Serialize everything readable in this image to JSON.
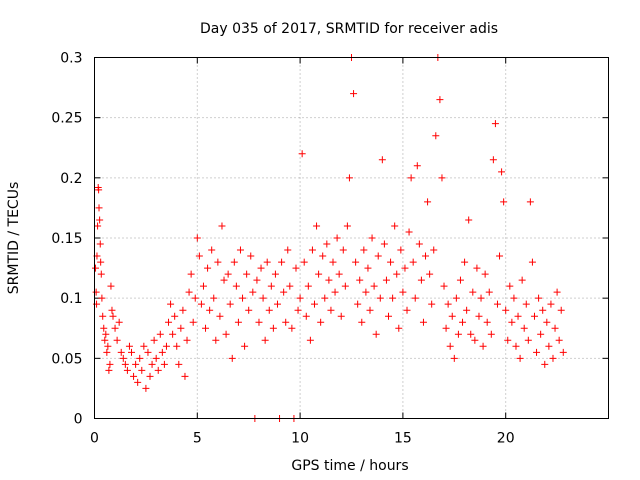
{
  "chart_data": {
    "type": "scatter",
    "title": "Day 035 of 2017, SRMTID for receiver adis",
    "xlabel": "GPS time / hours",
    "ylabel": "SRMTID / TECUs",
    "xlim": [
      0,
      25
    ],
    "ylim": [
      0,
      0.3
    ],
    "xticks": [
      0,
      5,
      10,
      15,
      20
    ],
    "xtick_labels": [
      "0",
      "5",
      "10",
      "15",
      "20"
    ],
    "yticks": [
      0,
      0.05,
      0.1,
      0.15,
      0.2,
      0.25,
      0.3
    ],
    "ytick_labels": [
      "0",
      "0.05",
      "0.1",
      "0.15",
      "0.2",
      "0.25",
      "0.3"
    ],
    "grid": true,
    "marker": "+",
    "color": "#ff0000",
    "series": [
      {
        "name": "SRMTID",
        "points": [
          [
            0.05,
            0.125
          ],
          [
            0.08,
            0.105
          ],
          [
            0.1,
            0.095
          ],
          [
            0.12,
            0.135
          ],
          [
            0.15,
            0.16
          ],
          [
            0.18,
            0.192
          ],
          [
            0.2,
            0.19
          ],
          [
            0.22,
            0.175
          ],
          [
            0.25,
            0.165
          ],
          [
            0.28,
            0.145
          ],
          [
            0.3,
            0.13
          ],
          [
            0.33,
            0.12
          ],
          [
            0.36,
            0.1
          ],
          [
            0.4,
            0.085
          ],
          [
            0.45,
            0.075
          ],
          [
            0.5,
            0.065
          ],
          [
            0.55,
            0.07
          ],
          [
            0.6,
            0.055
          ],
          [
            0.65,
            0.06
          ],
          [
            0.7,
            0.04
          ],
          [
            0.75,
            0.045
          ],
          [
            0.8,
            0.11
          ],
          [
            0.85,
            0.09
          ],
          [
            0.9,
            0.085
          ],
          [
            1.0,
            0.075
          ],
          [
            1.1,
            0.065
          ],
          [
            1.2,
            0.08
          ],
          [
            1.3,
            0.055
          ],
          [
            1.4,
            0.05
          ],
          [
            1.5,
            0.045
          ],
          [
            1.6,
            0.04
          ],
          [
            1.7,
            0.06
          ],
          [
            1.8,
            0.055
          ],
          [
            1.9,
            0.035
          ],
          [
            2.0,
            0.045
          ],
          [
            2.1,
            0.03
          ],
          [
            2.2,
            0.05
          ],
          [
            2.3,
            0.04
          ],
          [
            2.4,
            0.06
          ],
          [
            2.5,
            0.025
          ],
          [
            2.6,
            0.055
          ],
          [
            2.7,
            0.035
          ],
          [
            2.8,
            0.045
          ],
          [
            2.9,
            0.065
          ],
          [
            3.0,
            0.05
          ],
          [
            3.1,
            0.04
          ],
          [
            3.2,
            0.07
          ],
          [
            3.3,
            0.055
          ],
          [
            3.4,
            0.045
          ],
          [
            3.5,
            0.06
          ],
          [
            3.6,
            0.08
          ],
          [
            3.7,
            0.095
          ],
          [
            3.8,
            0.07
          ],
          [
            3.9,
            0.085
          ],
          [
            4.0,
            0.06
          ],
          [
            4.1,
            0.045
          ],
          [
            4.2,
            0.075
          ],
          [
            4.3,
            0.09
          ],
          [
            4.4,
            0.035
          ],
          [
            4.5,
            0.065
          ],
          [
            4.6,
            0.105
          ],
          [
            4.7,
            0.12
          ],
          [
            4.8,
            0.08
          ],
          [
            4.9,
            0.1
          ],
          [
            5.0,
            0.15
          ],
          [
            5.1,
            0.135
          ],
          [
            5.2,
            0.095
          ],
          [
            5.3,
            0.11
          ],
          [
            5.4,
            0.075
          ],
          [
            5.5,
            0.125
          ],
          [
            5.6,
            0.09
          ],
          [
            5.7,
            0.14
          ],
          [
            5.8,
            0.1
          ],
          [
            5.9,
            0.065
          ],
          [
            6.0,
            0.13
          ],
          [
            6.1,
            0.085
          ],
          [
            6.2,
            0.16
          ],
          [
            6.3,
            0.115
          ],
          [
            6.4,
            0.07
          ],
          [
            6.5,
            0.12
          ],
          [
            6.6,
            0.095
          ],
          [
            6.7,
            0.05
          ],
          [
            6.8,
            0.13
          ],
          [
            6.9,
            0.11
          ],
          [
            7.0,
            0.08
          ],
          [
            7.1,
            0.14
          ],
          [
            7.2,
            0.1
          ],
          [
            7.3,
            0.06
          ],
          [
            7.4,
            0.12
          ],
          [
            7.5,
            0.09
          ],
          [
            7.6,
            0.135
          ],
          [
            7.7,
            0.105
          ],
          [
            7.8,
            0.0
          ],
          [
            7.9,
            0.115
          ],
          [
            8.0,
            0.08
          ],
          [
            8.1,
            0.125
          ],
          [
            8.2,
            0.1
          ],
          [
            8.3,
            0.065
          ],
          [
            8.4,
            0.13
          ],
          [
            8.5,
            0.09
          ],
          [
            8.6,
            0.11
          ],
          [
            8.7,
            0.075
          ],
          [
            8.8,
            0.12
          ],
          [
            8.9,
            0.095
          ],
          [
            9.0,
            0.0
          ],
          [
            9.1,
            0.13
          ],
          [
            9.2,
            0.105
          ],
          [
            9.3,
            0.08
          ],
          [
            9.4,
            0.14
          ],
          [
            9.5,
            0.11
          ],
          [
            9.6,
            0.075
          ],
          [
            9.7,
            0.0
          ],
          [
            9.8,
            0.125
          ],
          [
            9.9,
            0.09
          ],
          [
            10.0,
            0.1
          ],
          [
            10.1,
            0.22
          ],
          [
            10.2,
            0.13
          ],
          [
            10.3,
            0.085
          ],
          [
            10.4,
            0.11
          ],
          [
            10.5,
            0.065
          ],
          [
            10.6,
            0.14
          ],
          [
            10.7,
            0.095
          ],
          [
            10.8,
            0.16
          ],
          [
            10.9,
            0.12
          ],
          [
            11.0,
            0.08
          ],
          [
            11.1,
            0.135
          ],
          [
            11.2,
            0.1
          ],
          [
            11.3,
            0.145
          ],
          [
            11.4,
            0.115
          ],
          [
            11.5,
            0.09
          ],
          [
            11.6,
            0.13
          ],
          [
            11.7,
            0.105
          ],
          [
            11.8,
            0.15
          ],
          [
            11.9,
            0.12
          ],
          [
            12.0,
            0.085
          ],
          [
            12.1,
            0.14
          ],
          [
            12.2,
            0.11
          ],
          [
            12.3,
            0.16
          ],
          [
            12.4,
            0.2
          ],
          [
            12.5,
            0.3
          ],
          [
            12.6,
            0.27
          ],
          [
            12.7,
            0.13
          ],
          [
            12.8,
            0.095
          ],
          [
            12.9,
            0.115
          ],
          [
            13.0,
            0.08
          ],
          [
            13.1,
            0.14
          ],
          [
            13.2,
            0.105
          ],
          [
            13.3,
            0.125
          ],
          [
            13.4,
            0.09
          ],
          [
            13.5,
            0.15
          ],
          [
            13.6,
            0.11
          ],
          [
            13.7,
            0.07
          ],
          [
            13.8,
            0.135
          ],
          [
            13.9,
            0.1
          ],
          [
            14.0,
            0.215
          ],
          [
            14.1,
            0.145
          ],
          [
            14.2,
            0.115
          ],
          [
            14.3,
            0.085
          ],
          [
            14.4,
            0.13
          ],
          [
            14.5,
            0.1
          ],
          [
            14.6,
            0.16
          ],
          [
            14.7,
            0.12
          ],
          [
            14.8,
            0.075
          ],
          [
            14.9,
            0.14
          ],
          [
            15.0,
            0.105
          ],
          [
            15.1,
            0.125
          ],
          [
            15.2,
            0.09
          ],
          [
            15.3,
            0.155
          ],
          [
            15.4,
            0.2
          ],
          [
            15.5,
            0.13
          ],
          [
            15.6,
            0.1
          ],
          [
            15.7,
            0.21
          ],
          [
            15.8,
            0.145
          ],
          [
            15.9,
            0.115
          ],
          [
            16.0,
            0.08
          ],
          [
            16.1,
            0.135
          ],
          [
            16.2,
            0.18
          ],
          [
            16.3,
            0.12
          ],
          [
            16.4,
            0.095
          ],
          [
            16.5,
            0.14
          ],
          [
            16.6,
            0.235
          ],
          [
            16.7,
            0.3
          ],
          [
            16.8,
            0.265
          ],
          [
            16.9,
            0.2
          ],
          [
            17.0,
            0.11
          ],
          [
            17.1,
            0.075
          ],
          [
            17.2,
            0.095
          ],
          [
            17.3,
            0.06
          ],
          [
            17.4,
            0.085
          ],
          [
            17.5,
            0.05
          ],
          [
            17.6,
            0.1
          ],
          [
            17.7,
            0.07
          ],
          [
            17.8,
            0.115
          ],
          [
            17.9,
            0.08
          ],
          [
            18.0,
            0.13
          ],
          [
            18.1,
            0.09
          ],
          [
            18.2,
            0.165
          ],
          [
            18.3,
            0.07
          ],
          [
            18.4,
            0.105
          ],
          [
            18.5,
            0.065
          ],
          [
            18.6,
            0.125
          ],
          [
            18.7,
            0.085
          ],
          [
            18.8,
            0.1
          ],
          [
            18.9,
            0.06
          ],
          [
            19.0,
            0.12
          ],
          [
            19.1,
            0.08
          ],
          [
            19.2,
            0.105
          ],
          [
            19.3,
            0.07
          ],
          [
            19.4,
            0.215
          ],
          [
            19.5,
            0.245
          ],
          [
            19.6,
            0.095
          ],
          [
            19.7,
            0.135
          ],
          [
            19.8,
            0.205
          ],
          [
            19.9,
            0.18
          ],
          [
            20.0,
            0.09
          ],
          [
            20.1,
            0.065
          ],
          [
            20.2,
            0.11
          ],
          [
            20.3,
            0.08
          ],
          [
            20.4,
            0.1
          ],
          [
            20.5,
            0.06
          ],
          [
            20.6,
            0.085
          ],
          [
            20.7,
            0.05
          ],
          [
            20.8,
            0.115
          ],
          [
            20.9,
            0.075
          ],
          [
            21.0,
            0.095
          ],
          [
            21.1,
            0.065
          ],
          [
            21.2,
            0.18
          ],
          [
            21.3,
            0.13
          ],
          [
            21.4,
            0.085
          ],
          [
            21.5,
            0.055
          ],
          [
            21.6,
            0.1
          ],
          [
            21.7,
            0.07
          ],
          [
            21.8,
            0.09
          ],
          [
            21.9,
            0.045
          ],
          [
            22.0,
            0.08
          ],
          [
            22.1,
            0.06
          ],
          [
            22.2,
            0.095
          ],
          [
            22.3,
            0.05
          ],
          [
            22.4,
            0.075
          ],
          [
            22.5,
            0.105
          ],
          [
            22.6,
            0.065
          ],
          [
            22.7,
            0.09
          ],
          [
            22.8,
            0.055
          ]
        ]
      }
    ]
  }
}
